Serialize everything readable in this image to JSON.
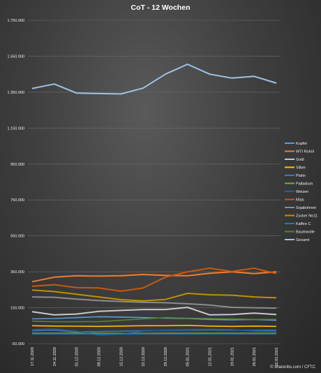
{
  "chart_data": {
    "type": "line",
    "title": "CoT - 12 Wochen",
    "xlabel": "",
    "ylabel": "",
    "ylim": [
      -50000,
      1750000
    ],
    "yticks": [
      "-50.000",
      "150.000",
      "350.000",
      "550.000",
      "750.000",
      "950.000",
      "1.150.000",
      "1.350.000",
      "1.550.000",
      "1.750.000"
    ],
    "grid": true,
    "legend_position": "right",
    "categories": [
      "17.11.2020",
      "24.11.2020",
      "01.12.2020",
      "08.12.2020",
      "15.12.2020",
      "22.12.2020",
      "29.12.2020",
      "05.01.2021",
      "12.01.2021",
      "19.01.2021",
      "26.01.2021",
      "02.02.2021"
    ],
    "series": [
      {
        "name": "Kupfer",
        "color": "#5b9bd5",
        "values": [
          88000,
          90000,
          95000,
          100000,
          98000,
          95000,
          92000,
          90000,
          85000,
          82000,
          85000,
          80000
        ]
      },
      {
        "name": "WTI Rohöl",
        "color": "#ed7d31",
        "values": [
          295000,
          320000,
          328000,
          326000,
          328000,
          335000,
          330000,
          328000,
          342000,
          350000,
          340000,
          350000
        ]
      },
      {
        "name": "Gold",
        "color": "#c9c9c9",
        "values": [
          128000,
          110000,
          115000,
          130000,
          135000,
          140000,
          140000,
          152000,
          110000,
          112000,
          120000,
          112000
        ]
      },
      {
        "name": "Silber",
        "color": "#ffc000",
        "values": [
          50000,
          48000,
          47000,
          46000,
          48000,
          50000,
          50000,
          52000,
          48000,
          46000,
          48000,
          46000
        ]
      },
      {
        "name": "Platin",
        "color": "#4472c4",
        "values": [
          22000,
          25000,
          15000,
          18000,
          20000,
          22000,
          24000,
          25000,
          26000,
          25000,
          24000,
          25000
        ]
      },
      {
        "name": "Palladium",
        "color": "#70ad47",
        "values": [
          8000,
          8000,
          8000,
          8000,
          7000,
          7000,
          8000,
          8000,
          8000,
          8000,
          8000,
          8000
        ]
      },
      {
        "name": "Weizen",
        "color": "#255e91",
        "values": [
          28000,
          32000,
          20000,
          -2000,
          5000,
          20000,
          25000,
          28000,
          30000,
          28000,
          20000,
          18000
        ]
      },
      {
        "name": "Mais",
        "color": "#c65911",
        "values": [
          270000,
          278000,
          262000,
          260000,
          242000,
          260000,
          320000,
          350000,
          370000,
          352000,
          370000,
          340000
        ]
      },
      {
        "name": "Sojabohnen",
        "color": "#8c8c8c",
        "values": [
          210000,
          208000,
          198000,
          190000,
          185000,
          180000,
          178000,
          172000,
          165000,
          152000,
          150000,
          148000
        ]
      },
      {
        "name": "Zucker No11",
        "color": "#bf9000",
        "values": [
          248000,
          240000,
          225000,
          210000,
          195000,
          188000,
          196000,
          230000,
          222000,
          220000,
          210000,
          205000
        ]
      },
      {
        "name": "Kaffee C",
        "color": "#2e75b6",
        "values": [
          5000,
          5000,
          5000,
          5000,
          5000,
          5000,
          5000,
          5000,
          5000,
          5000,
          5000,
          5000
        ]
      },
      {
        "name": "Baumwolle",
        "color": "#548235",
        "values": [
          75000,
          72000,
          72000,
          73000,
          80000,
          88000,
          95000,
          92000,
          90000,
          88000,
          85000,
          85000
        ]
      },
      {
        "name": "Gesamt",
        "color": "#9dc3e6",
        "values": [
          1370000,
          1395000,
          1345000,
          1342000,
          1340000,
          1372000,
          1450000,
          1505000,
          1450000,
          1428000,
          1438000,
          1400000
        ]
      }
    ]
  },
  "footer": {
    "source": "© shareribs.com / CFTC"
  }
}
